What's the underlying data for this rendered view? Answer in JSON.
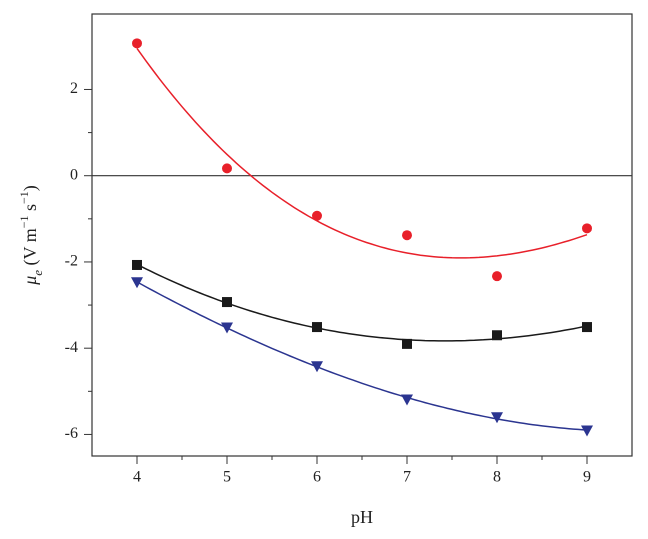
{
  "chart_data": {
    "type": "scatter",
    "fit": "cubic",
    "x_label": "pH",
    "y_label": [
      {
        "text": "μ"
      },
      {
        "text": "e",
        "sub": true
      },
      {
        "text": " (V m"
      },
      {
        "text": "−1",
        "sup": true
      },
      {
        "text": " s"
      },
      {
        "text": "−1",
        "sup": true
      },
      {
        "text": ")"
      }
    ],
    "x": [
      4,
      5,
      6,
      7,
      8,
      9
    ],
    "series": [
      {
        "color": "#e8202a",
        "marker": "circle",
        "values": [
          3.07,
          0.17,
          -0.93,
          -1.38,
          -2.33,
          -1.22
        ]
      },
      {
        "color": "#1a1a1a",
        "marker": "square",
        "values": [
          -2.07,
          -2.93,
          -3.51,
          -3.9,
          -3.7,
          -3.51
        ]
      },
      {
        "color": "#2b3590",
        "marker": "triangle-down",
        "values": [
          -2.47,
          -3.52,
          -4.42,
          -5.19,
          -5.6,
          -5.91
        ]
      }
    ],
    "xlim": [
      3.5,
      9.5
    ],
    "xticks": [
      4,
      5,
      6,
      7,
      8,
      9
    ],
    "ylim": [
      -6.5,
      3.75
    ],
    "yticks": [
      -6,
      -4,
      -2,
      0,
      2
    ],
    "zero_line": true
  }
}
